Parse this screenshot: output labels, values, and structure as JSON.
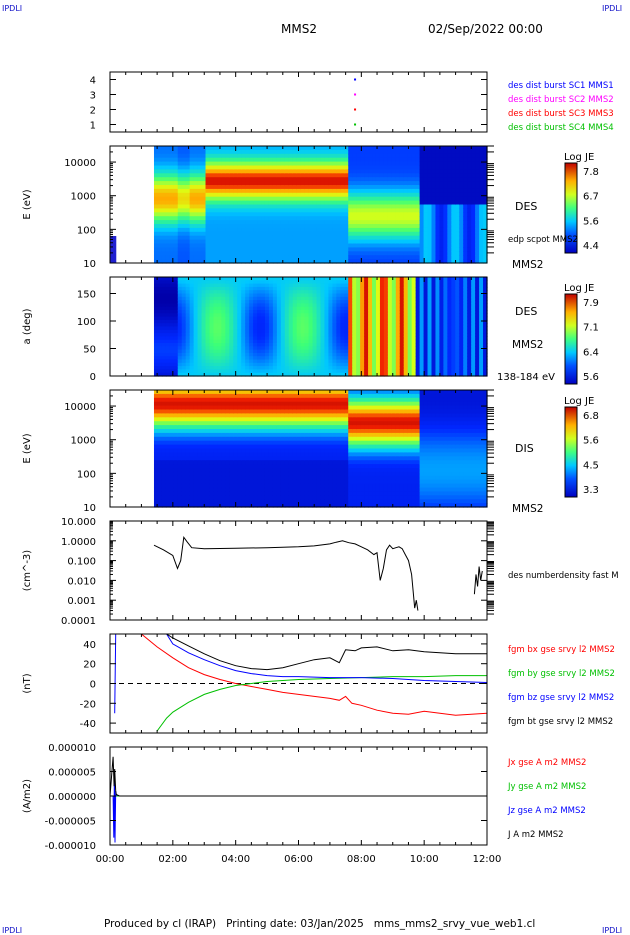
{
  "header": {
    "corner_tl": "IPDLI",
    "corner_tr": "IPDLI",
    "corner_bl": "IPDLI",
    "corner_br": "IPDLI",
    "spacecraft": "MMS2",
    "date": "02/Sep/2022 00:00"
  },
  "footer": {
    "text": "Produced by cl (IRAP)   Printing date: 03/Jan/2025   mms_mms2_srvy_vue_web1.cl"
  },
  "x_axis": {
    "range_hours": [
      0,
      12
    ],
    "ticks": [
      "00:00",
      "02:00",
      "04:00",
      "06:00",
      "08:00",
      "10:00",
      "12:00"
    ]
  },
  "colors": {
    "blue": "#0000ff",
    "magenta": "#ff00ff",
    "red": "#ff0000",
    "green": "#00c000",
    "black": "#000000"
  },
  "chart_data": [
    {
      "type": "scatter",
      "panel": "burst",
      "y_ticks": [
        "4",
        "3",
        "2",
        "1"
      ],
      "ylim": [
        0.5,
        4.5
      ],
      "series": [
        {
          "name": "des dist burst SC1 MMS1",
          "color": "#0000ff",
          "x": [
            7.8
          ],
          "y": [
            4
          ]
        },
        {
          "name": "des dist burst SC2 MMS2",
          "color": "#ff00ff",
          "x": [
            7.8
          ],
          "y": [
            3
          ]
        },
        {
          "name": "des dist burst SC3 MMS3",
          "color": "#ff0000",
          "x": [
            7.8
          ],
          "y": [
            2
          ]
        },
        {
          "name": "des dist burst SC4 MMS4",
          "color": "#00c000",
          "x": [
            7.8
          ],
          "y": [
            1
          ]
        }
      ]
    },
    {
      "type": "heatmap",
      "panel": "des_energy",
      "ylabel": "E (eV)",
      "y_ticks": [
        "10000",
        "1000",
        "100",
        "10"
      ],
      "y_scale": "log",
      "ylim": [
        10,
        30000
      ],
      "label": "DES",
      "sublabel": "edp scpot MMS2",
      "spacecraft_label": "MMS2",
      "colorbar": {
        "title": "Log JE",
        "ticks": [
          "7.8",
          "6.7",
          "5.6",
          "4.4"
        ]
      }
    },
    {
      "type": "heatmap",
      "panel": "des_pitch",
      "ylabel": "a (deg)",
      "y_ticks": [
        "150",
        "100",
        "50",
        "0"
      ],
      "ylim": [
        0,
        180
      ],
      "label": "DES",
      "spacecraft_label": "MMS2",
      "energy_range": "138-184 eV",
      "colorbar": {
        "title": "Log JE",
        "ticks": [
          "7.9",
          "7.1",
          "6.4",
          "5.6"
        ]
      }
    },
    {
      "type": "heatmap",
      "panel": "dis_energy",
      "ylabel": "E (eV)",
      "y_ticks": [
        "10000",
        "1000",
        "100",
        "10"
      ],
      "y_scale": "log",
      "ylim": [
        10,
        30000
      ],
      "label": "DIS",
      "spacecraft_label": "MMS2",
      "colorbar": {
        "title": "Log JE",
        "ticks": [
          "6.8",
          "5.6",
          "4.5",
          "3.3"
        ]
      }
    },
    {
      "type": "line",
      "panel": "density",
      "ylabel": "(cm^-3)",
      "y_ticks": [
        "10.000",
        "1.0000",
        "0.100",
        "0.010",
        "0.001",
        "0.0001"
      ],
      "y_scale": "log",
      "ylim": [
        0.0001,
        10
      ],
      "series": [
        {
          "name": "des numberdensity fast M",
          "color": "#000000",
          "x": [
            1.4,
            1.7,
            2.0,
            2.15,
            2.25,
            2.35,
            2.45,
            2.6,
            3.0,
            4.0,
            5.0,
            6.0,
            6.5,
            7.0,
            7.2,
            7.4,
            7.6,
            7.8,
            8.0,
            8.2,
            8.4,
            8.5,
            8.6,
            8.7,
            8.8,
            8.9,
            9.0,
            9.1,
            9.2,
            9.3,
            9.4,
            9.5,
            9.6,
            9.7,
            9.75,
            9.8
          ],
          "y": [
            0.6,
            0.35,
            0.18,
            0.04,
            0.1,
            1.5,
            0.9,
            0.45,
            0.4,
            0.42,
            0.45,
            0.5,
            0.55,
            0.7,
            0.85,
            1.0,
            0.8,
            0.7,
            0.5,
            0.35,
            0.2,
            0.25,
            0.01,
            0.04,
            0.35,
            0.6,
            0.4,
            0.45,
            0.5,
            0.4,
            0.2,
            0.1,
            0.02,
            0.0004,
            0.001,
            0.0003
          ]
        },
        {
          "name": "",
          "color": "#000000",
          "x": [
            11.6,
            11.65,
            11.7,
            11.75,
            11.8,
            11.85
          ],
          "y": [
            0.002,
            0.02,
            0.005,
            0.05,
            0.01,
            0.03
          ]
        }
      ]
    },
    {
      "type": "line",
      "panel": "fgm",
      "ylabel": "(nT)",
      "y_ticks": [
        "40",
        "20",
        "0",
        "-20",
        "-40"
      ],
      "ylim": [
        -50,
        50
      ],
      "series": [
        {
          "name": "fgm bx gse srvy l2 MMS2",
          "color": "#ff0000",
          "x": [
            1.0,
            1.5,
            2.0,
            2.5,
            3.0,
            3.5,
            4.0,
            4.5,
            5.0,
            5.5,
            6.0,
            6.5,
            7.0,
            7.3,
            7.5,
            7.7,
            8.0,
            8.5,
            9.0,
            9.5,
            10.0,
            11.0,
            12.0
          ],
          "y": [
            50,
            37,
            26,
            16,
            9,
            4,
            0,
            -3,
            -6,
            -9,
            -11,
            -13,
            -15,
            -17,
            -13,
            -20,
            -22,
            -27,
            -30,
            -31,
            -28,
            -32,
            -30
          ]
        },
        {
          "name": "fgm by gse srvy l2 MMS2",
          "color": "#00c000",
          "x": [
            1.5,
            1.8,
            2.0,
            2.5,
            3.0,
            3.5,
            4.0,
            4.5,
            5.0,
            5.5,
            6.0,
            7.0,
            8.0,
            9.0,
            10.0,
            11.0,
            12.0
          ],
          "y": [
            -48,
            -35,
            -29,
            -19,
            -11,
            -6,
            -2,
            0,
            2,
            3,
            4,
            5,
            6,
            7,
            7,
            8,
            8
          ]
        },
        {
          "name": "fgm bz gse srvy l2 MMS2",
          "color": "#0000ff",
          "x": [
            0.15,
            0.18,
            1.8,
            2.0,
            2.5,
            3.0,
            3.5,
            4.0,
            4.5,
            5.0,
            5.5,
            6.0,
            7.0,
            8.0,
            9.0,
            10.0,
            11.0,
            12.0
          ],
          "y": [
            -30,
            50,
            50,
            40,
            31,
            24,
            18,
            13,
            10,
            8,
            7,
            7,
            6,
            6,
            5,
            3,
            2,
            1
          ]
        },
        {
          "name": "fgm bt gse srvy l2 MMS2",
          "color": "#000000",
          "x": [
            1.8,
            2.0,
            2.5,
            3.0,
            3.5,
            4.0,
            4.5,
            5.0,
            5.5,
            6.0,
            6.5,
            7.0,
            7.3,
            7.5,
            7.8,
            8.0,
            8.5,
            9.0,
            9.5,
            10.0,
            11.0,
            12.0
          ],
          "y": [
            50,
            46,
            38,
            30,
            23,
            18,
            15,
            14,
            16,
            20,
            24,
            26,
            21,
            34,
            33,
            36,
            37,
            33,
            34,
            32,
            30,
            30
          ]
        }
      ],
      "reference_line": 0
    },
    {
      "type": "line",
      "panel": "current",
      "ylabel": "(A/m2)",
      "y_ticks": [
        "0.000010",
        "0.000005",
        "0.000000",
        "-0.000005",
        "-0.000010"
      ],
      "ylim": [
        -1e-05,
        1e-05
      ],
      "series": [
        {
          "name": "Jx gse A m2 MMS2",
          "color": "#ff0000",
          "x": [
            0,
            12
          ],
          "y": [
            0,
            0
          ]
        },
        {
          "name": "Jy gse A m2 MMS2",
          "color": "#00c000",
          "x": [
            0,
            12
          ],
          "y": [
            0,
            0
          ]
        },
        {
          "name": "Jz gse A m2 MMS2",
          "color": "#0000ff",
          "x": [
            0.1,
            0.12,
            0.14,
            0.16,
            0.18,
            0.2
          ],
          "y": [
            0,
            -8.5e-06,
            4e-06,
            -9.5e-06,
            1e-06,
            0
          ]
        },
        {
          "name": "J A m2 MMS2",
          "color": "#000000",
          "x": [
            0.0,
            0.1,
            0.13,
            0.15,
            0.18,
            0.2,
            0.3,
            12.0
          ],
          "y": [
            0,
            8e-06,
            2e-06,
            5.5e-06,
            1e-06,
            3e-07,
            0,
            0
          ]
        }
      ]
    }
  ]
}
